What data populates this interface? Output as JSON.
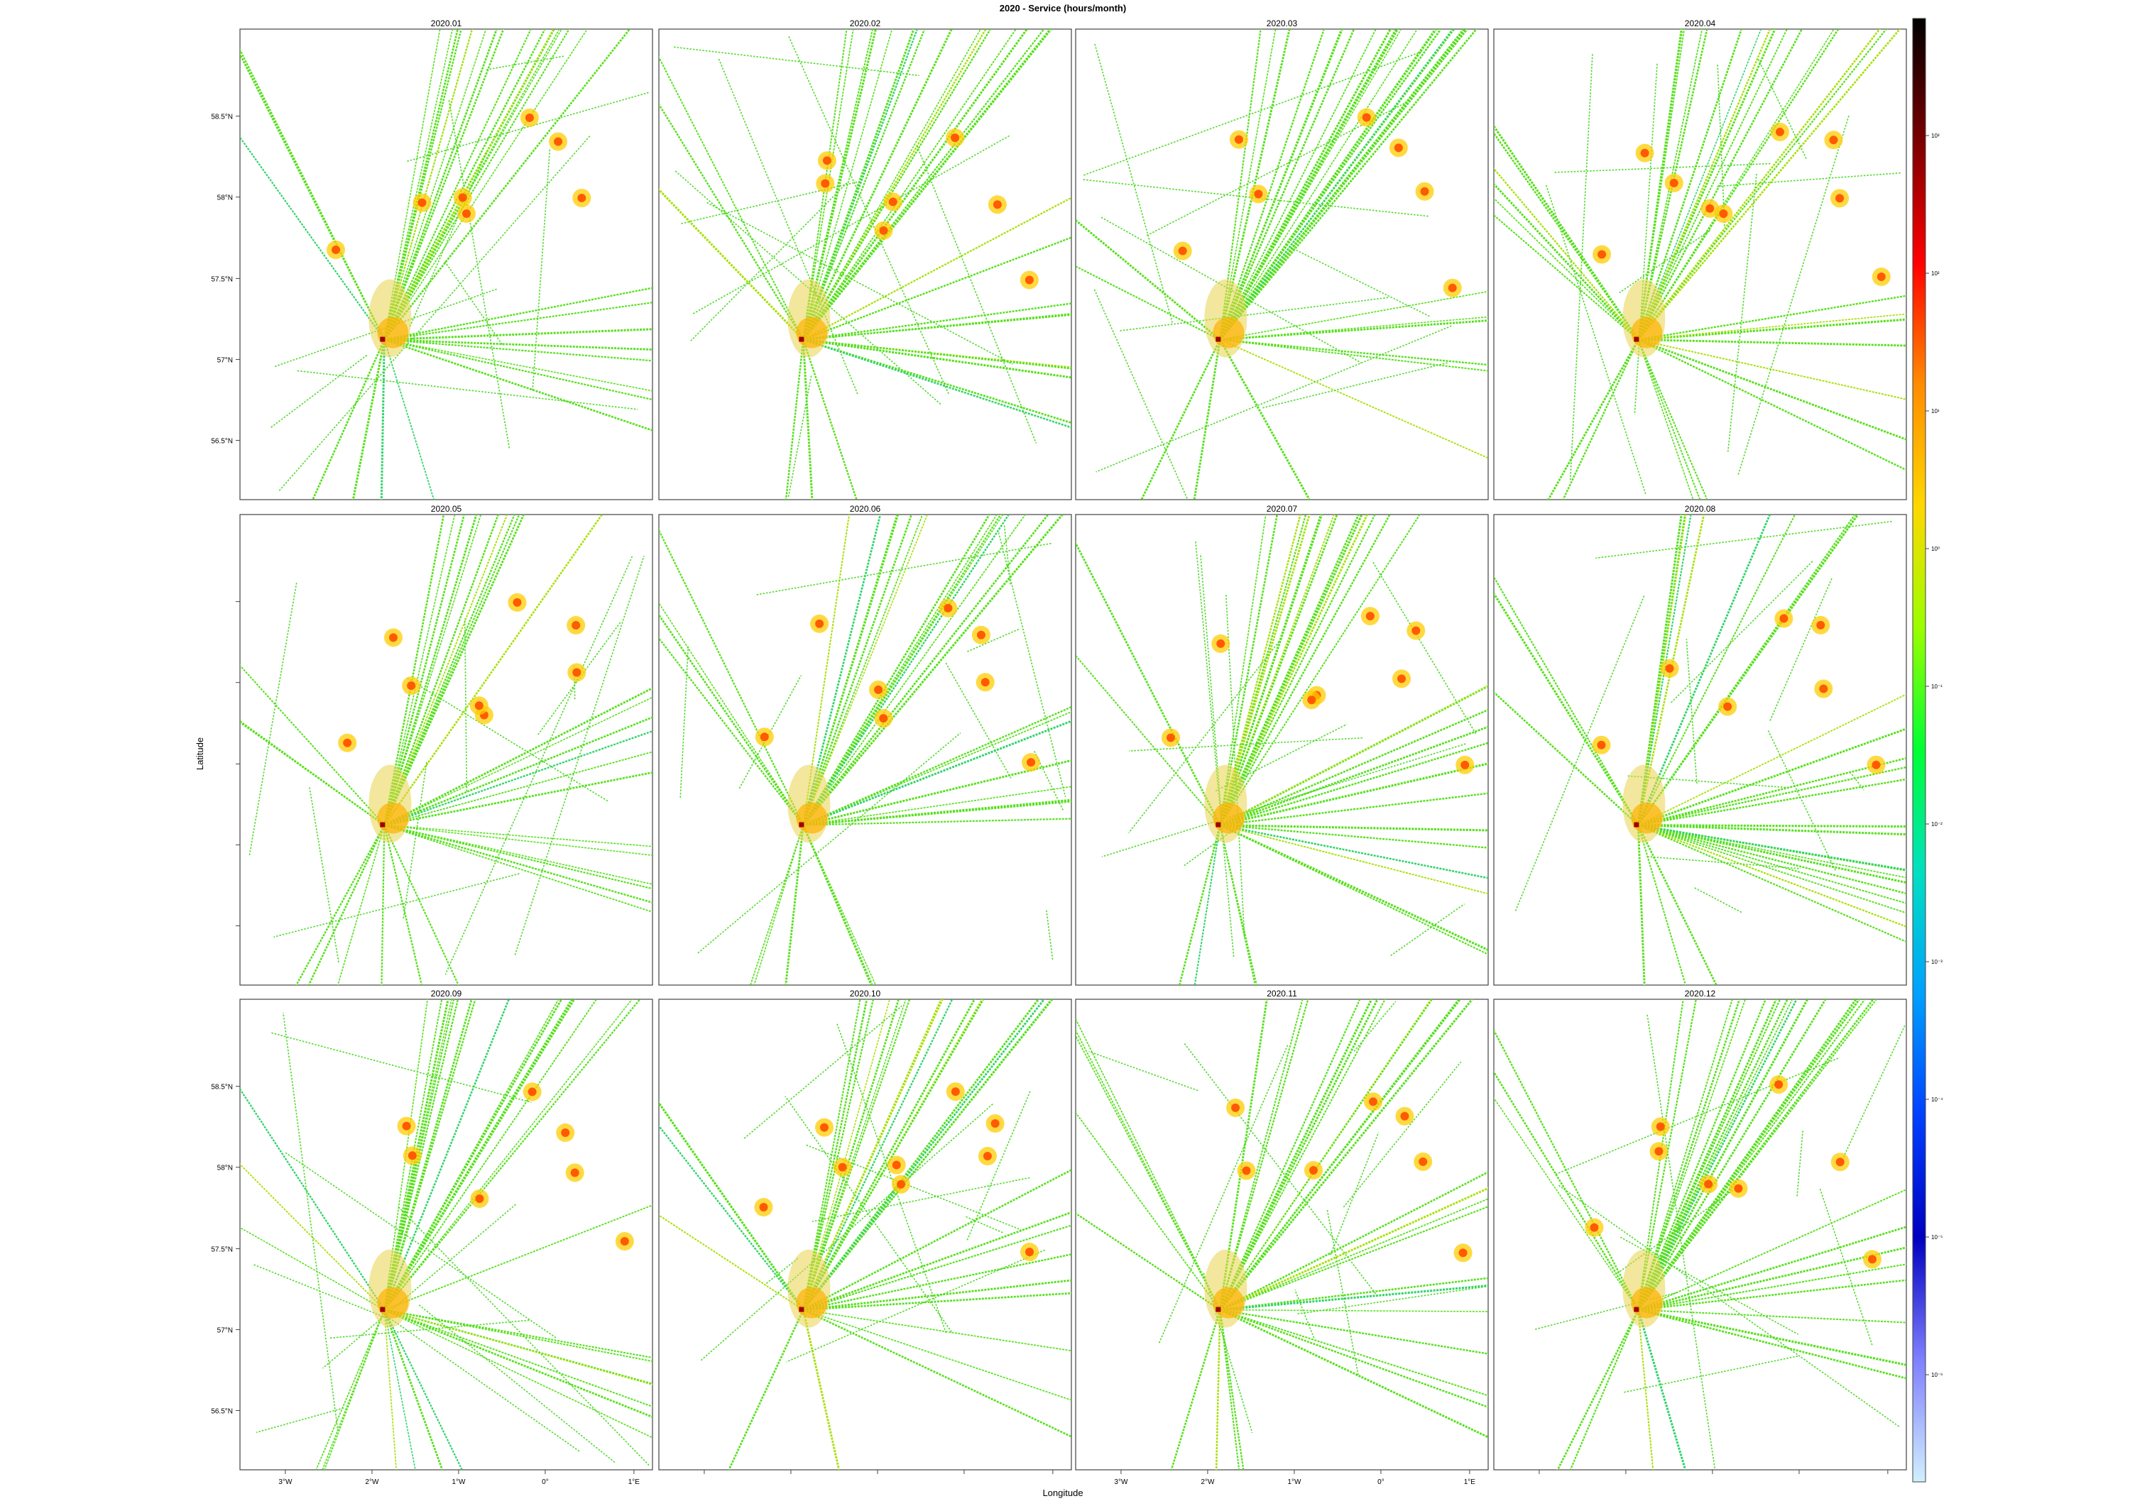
{
  "title": "2020 - Service (hours/month)",
  "xlabel": "Longitude",
  "ylabel": "Latitude",
  "panels": [
    {
      "label": "2020.01",
      "seed": 11
    },
    {
      "label": "2020.02",
      "seed": 23
    },
    {
      "label": "2020.03",
      "seed": 37
    },
    {
      "label": "2020.04",
      "seed": 41
    },
    {
      "label": "2020.05",
      "seed": 53
    },
    {
      "label": "2020.06",
      "seed": 67
    },
    {
      "label": "2020.07",
      "seed": 71
    },
    {
      "label": "2020.08",
      "seed": 83
    },
    {
      "label": "2020.09",
      "seed": 97
    },
    {
      "label": "2020.10",
      "seed": 101
    },
    {
      "label": "2020.11",
      "seed": 113
    },
    {
      "label": "2020.12",
      "seed": 127
    }
  ],
  "y_ticks": [
    "58.5°N",
    "58°N",
    "57.5°N",
    "57°N",
    "56.5°N"
  ],
  "x_ticks": [
    "3°W",
    "2°W",
    "1°W",
    "0°",
    "1°E"
  ],
  "colorbar": {
    "colors": [
      "#000000",
      "#7a0000",
      "#ff0000",
      "#ff8c00",
      "#ffd700",
      "#9aff00",
      "#00ff33",
      "#00e0c0",
      "#00a0ff",
      "#0040ff",
      "#0000c0",
      "#8080ff",
      "#d0f0ff"
    ],
    "labels": [
      "10³",
      "10²",
      "10¹",
      "10⁰",
      "10⁻¹",
      "10⁻²",
      "10⁻³",
      "10⁻⁴",
      "10⁻⁵",
      "10⁻⁶"
    ]
  }
}
